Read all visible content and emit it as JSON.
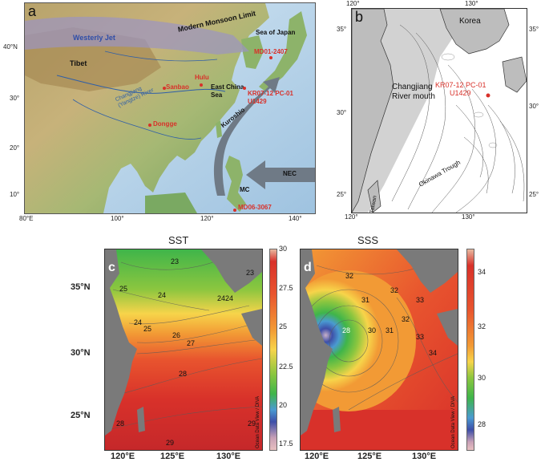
{
  "panel_a": {
    "letter": "a",
    "lat_ticks": [
      "40°N",
      "30°",
      "20°",
      "10°"
    ],
    "lon_ticks": [
      "80°E",
      "100°",
      "120°",
      "140°"
    ],
    "labels": {
      "westerly_jet": "Westerly Jet",
      "monsoon_limit": "Modern Monsoon Limit",
      "tibet": "Tibet",
      "sea_of_japan": "Sea of Japan",
      "east_china_sea": "East China Sea",
      "kuroshio": "Kuroshio",
      "nec": "NEC",
      "mc": "MC",
      "changjiang": "Changjiang (Yangtze) River"
    },
    "sites": {
      "md01": "MD01-2407",
      "hulu": "Hulu",
      "sanbao": "Sanbao",
      "kr07": "KR07-12 PC-01",
      "u1429": "U1429",
      "dongge": "Dongge",
      "md06": "MD06-3067"
    }
  },
  "panel_b": {
    "letter": "b",
    "top_ticks": [
      "120°",
      "130°"
    ],
    "bottom_ticks": [
      "120°",
      "130°"
    ],
    "left_ticks": [
      "35°",
      "30°",
      "25°"
    ],
    "right_ticks": [
      "35°",
      "30°",
      "25°"
    ],
    "labels": {
      "korea": "Korea",
      "changjiang_mouth": "Changjiang River mouth",
      "okinawa": "Okinawa Trough",
      "taiwan": "Taiwan"
    },
    "sites": {
      "kr07": "KR07-12 PC-01",
      "u1429": "U1429"
    }
  },
  "panel_c": {
    "letter": "c",
    "title": "SST",
    "lat_ticks": [
      "35°N",
      "30°N",
      "25°N"
    ],
    "lon_ticks": [
      "120°E",
      "125°E",
      "130°E"
    ],
    "colorbar_ticks": [
      "30",
      "27.5",
      "25",
      "22.5",
      "20",
      "17.5"
    ],
    "contours": [
      "23",
      "24",
      "24",
      "25",
      "26",
      "27",
      "28",
      "28",
      "29",
      "29",
      "23",
      "24",
      "24",
      "25"
    ],
    "credit": "Ocean Data View / DIVA"
  },
  "panel_d": {
    "letter": "d",
    "title": "SSS",
    "lat_ticks": [],
    "lon_ticks": [
      "120°E",
      "125°E",
      "130°E"
    ],
    "colorbar_ticks": [
      "34",
      "32",
      "30",
      "28"
    ],
    "contours": [
      "32",
      "32",
      "33",
      "31",
      "30",
      "31",
      "32",
      "33",
      "34",
      "28"
    ],
    "credit": "Ocean Data View / DIVA"
  },
  "colors": {
    "site_red": "#d8312a",
    "land_gray": "#6b6b6b",
    "monsoon_band": "#9b94c2",
    "current_arrow": "#6f7a86"
  }
}
